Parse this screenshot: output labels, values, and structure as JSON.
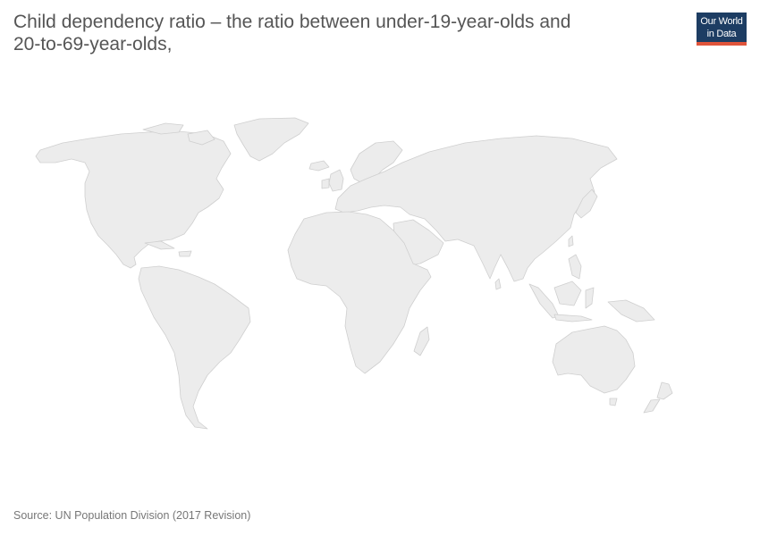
{
  "header": {
    "title_line1": "Child dependency ratio – the ratio between under-19-year-olds and",
    "title_line2": "20-to-69-year-olds,"
  },
  "logo": {
    "line1": "Our World",
    "line2": "in Data",
    "background_color": "#1d3d63",
    "accent_color": "#e0543b"
  },
  "map": {
    "land_color": "#ececec",
    "border_color": "#cfcfcf"
  },
  "footer": {
    "source": "Source: UN Population Division (2017 Revision)"
  }
}
